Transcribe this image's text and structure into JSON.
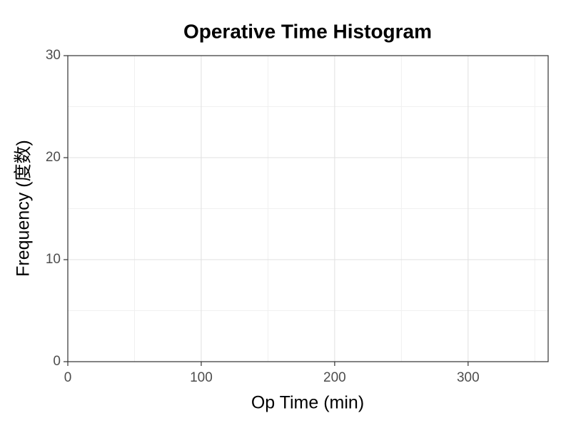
{
  "chart_data": {
    "type": "histogram",
    "title": "Operative Time Histogram",
    "x_label": "Op Time (min)",
    "y_label": "Frequency (度数)",
    "xlim": [
      0,
      360
    ],
    "xticks": [
      0,
      100,
      200,
      300
    ],
    "xminorticks": [
      50,
      150,
      250,
      350
    ],
    "ylim": [
      0,
      30
    ],
    "yticks": [
      0,
      10,
      20,
      30
    ],
    "yminorticks": [
      5,
      15,
      25
    ],
    "grid": true
  }
}
